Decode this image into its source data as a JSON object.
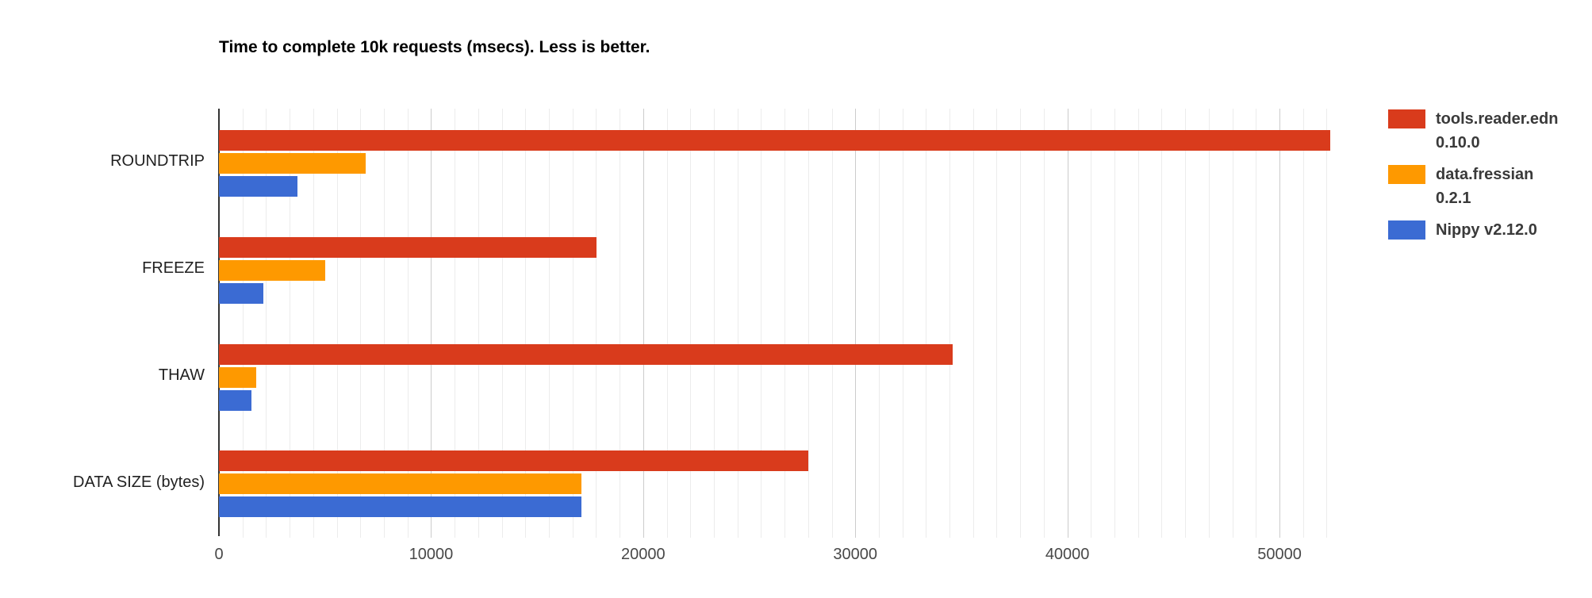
{
  "title": "Time to complete 10k requests (msecs). Less is better.",
  "chart_data": {
    "type": "bar",
    "orientation": "horizontal",
    "title": "Time to complete 10k requests (msecs). Less is better.",
    "categories": [
      "ROUNDTRIP",
      "FREEZE",
      "THAW",
      "DATA SIZE (bytes)"
    ],
    "series": [
      {
        "name": "tools.reader.edn 0.10.0",
        "legend_lines": [
          "tools.reader.edn",
          "0.10.0"
        ],
        "color": "#d93b1c",
        "values": [
          52400,
          17800,
          34600,
          27800
        ]
      },
      {
        "name": "data.fressian 0.2.1",
        "legend_lines": [
          "data.fressian",
          "0.2.1"
        ],
        "color": "#fe9900",
        "values": [
          6900,
          5000,
          1750,
          17100
        ]
      },
      {
        "name": "Nippy v2.12.0",
        "legend_lines": [
          "Nippy v2.12.0"
        ],
        "color": "#3b6bd3",
        "values": [
          3700,
          2100,
          1550,
          17100
        ]
      }
    ],
    "xlabel": "",
    "ylabel": "",
    "xlim": [
      0,
      54000
    ],
    "x_ticks": [
      0,
      10000,
      20000,
      30000,
      40000,
      50000
    ],
    "x_tick_labels": [
      "0",
      "10000",
      "20000",
      "30000",
      "40000",
      "50000"
    ],
    "minor_divisions_per_major": 9,
    "grid": true,
    "legend_position": "right",
    "background_color": "#ffffff",
    "axis_color": "#333333",
    "major_gridline_color": "#cccccc",
    "minor_gridline_color": "#ececec"
  }
}
